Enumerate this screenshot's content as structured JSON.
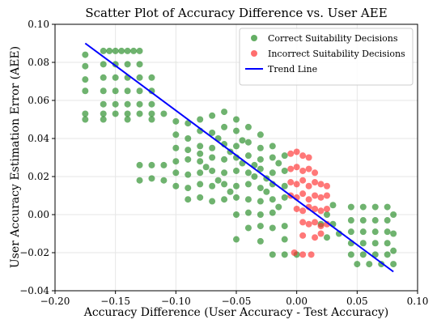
{
  "chart_data": {
    "type": "scatter",
    "title": "Scatter Plot of Accuracy Difference vs. User AEE",
    "xlabel": "Accuracy Difference (User Accuracy - Test Accuracy)",
    "ylabel": "User Accuracy Estimation Error (AEE)",
    "xlim": [
      -0.2,
      0.1
    ],
    "ylim": [
      -0.04,
      0.1
    ],
    "xticks": [
      -0.2,
      -0.15,
      -0.1,
      -0.05,
      0.0,
      0.05,
      0.1
    ],
    "xtick_labels": [
      "−0.20",
      "−0.15",
      "−0.10",
      "−0.05",
      "0.00",
      "0.05",
      "0.10"
    ],
    "yticks": [
      -0.04,
      -0.02,
      0.0,
      0.02,
      0.04,
      0.06,
      0.08,
      0.1
    ],
    "ytick_labels": [
      "−0.04",
      "−0.02",
      "0.00",
      "0.02",
      "0.04",
      "0.06",
      "0.08",
      "0.10"
    ],
    "grid": true,
    "legend_position": "top-right",
    "colors": {
      "correct": "#228b22",
      "incorrect": "#ff3030",
      "trend": "#0000ff"
    },
    "series": [
      {
        "name": "Correct Suitability Decisions",
        "kind": "points",
        "points": [
          [
            -0.175,
            0.084
          ],
          [
            -0.175,
            0.078
          ],
          [
            -0.175,
            0.071
          ],
          [
            -0.175,
            0.065
          ],
          [
            -0.175,
            0.053
          ],
          [
            -0.175,
            0.05
          ],
          [
            -0.16,
            0.086
          ],
          [
            -0.155,
            0.086
          ],
          [
            -0.15,
            0.086
          ],
          [
            -0.145,
            0.086
          ],
          [
            -0.14,
            0.086
          ],
          [
            -0.135,
            0.086
          ],
          [
            -0.13,
            0.086
          ],
          [
            -0.16,
            0.079
          ],
          [
            -0.15,
            0.079
          ],
          [
            -0.14,
            0.079
          ],
          [
            -0.13,
            0.079
          ],
          [
            -0.16,
            0.072
          ],
          [
            -0.15,
            0.072
          ],
          [
            -0.14,
            0.072
          ],
          [
            -0.13,
            0.072
          ],
          [
            -0.12,
            0.072
          ],
          [
            -0.16,
            0.065
          ],
          [
            -0.15,
            0.065
          ],
          [
            -0.14,
            0.065
          ],
          [
            -0.13,
            0.065
          ],
          [
            -0.12,
            0.065
          ],
          [
            -0.16,
            0.058
          ],
          [
            -0.15,
            0.058
          ],
          [
            -0.14,
            0.058
          ],
          [
            -0.13,
            0.058
          ],
          [
            -0.12,
            0.058
          ],
          [
            -0.16,
            0.053
          ],
          [
            -0.15,
            0.053
          ],
          [
            -0.14,
            0.053
          ],
          [
            -0.13,
            0.053
          ],
          [
            -0.12,
            0.053
          ],
          [
            -0.11,
            0.053
          ],
          [
            -0.16,
            0.05
          ],
          [
            -0.14,
            0.05
          ],
          [
            -0.12,
            0.05
          ],
          [
            -0.1,
            0.049
          ],
          [
            -0.09,
            0.048
          ],
          [
            -0.08,
            0.05
          ],
          [
            -0.07,
            0.052
          ],
          [
            -0.06,
            0.054
          ],
          [
            -0.05,
            0.05
          ],
          [
            -0.1,
            0.042
          ],
          [
            -0.09,
            0.04
          ],
          [
            -0.08,
            0.044
          ],
          [
            -0.07,
            0.043
          ],
          [
            -0.06,
            0.046
          ],
          [
            -0.05,
            0.044
          ],
          [
            -0.04,
            0.046
          ],
          [
            -0.03,
            0.042
          ],
          [
            -0.1,
            0.035
          ],
          [
            -0.09,
            0.034
          ],
          [
            -0.08,
            0.036
          ],
          [
            -0.07,
            0.035
          ],
          [
            -0.06,
            0.037
          ],
          [
            -0.05,
            0.036
          ],
          [
            -0.04,
            0.038
          ],
          [
            -0.03,
            0.035
          ],
          [
            -0.02,
            0.036
          ],
          [
            -0.1,
            0.028
          ],
          [
            -0.09,
            0.029
          ],
          [
            -0.08,
            0.028
          ],
          [
            -0.07,
            0.03
          ],
          [
            -0.06,
            0.029
          ],
          [
            -0.05,
            0.03
          ],
          [
            -0.04,
            0.031
          ],
          [
            -0.03,
            0.029
          ],
          [
            -0.02,
            0.03
          ],
          [
            -0.01,
            0.031
          ],
          [
            -0.11,
            0.026
          ],
          [
            -0.12,
            0.026
          ],
          [
            -0.13,
            0.026
          ],
          [
            -0.1,
            0.022
          ],
          [
            -0.09,
            0.021
          ],
          [
            -0.08,
            0.022
          ],
          [
            -0.07,
            0.023
          ],
          [
            -0.06,
            0.022
          ],
          [
            -0.05,
            0.023
          ],
          [
            -0.04,
            0.022
          ],
          [
            -0.03,
            0.024
          ],
          [
            -0.02,
            0.022
          ],
          [
            -0.01,
            0.023
          ],
          [
            -0.11,
            0.018
          ],
          [
            -0.12,
            0.019
          ],
          [
            -0.13,
            0.018
          ],
          [
            -0.1,
            0.015
          ],
          [
            -0.09,
            0.014
          ],
          [
            -0.08,
            0.016
          ],
          [
            -0.07,
            0.015
          ],
          [
            -0.06,
            0.016
          ],
          [
            -0.05,
            0.015
          ],
          [
            -0.04,
            0.016
          ],
          [
            -0.03,
            0.014
          ],
          [
            -0.02,
            0.016
          ],
          [
            -0.01,
            0.015
          ],
          [
            -0.09,
            0.008
          ],
          [
            -0.08,
            0.009
          ],
          [
            -0.07,
            0.007
          ],
          [
            -0.06,
            0.008
          ],
          [
            -0.05,
            0.009
          ],
          [
            -0.04,
            0.008
          ],
          [
            -0.03,
            0.007
          ],
          [
            -0.02,
            0.008
          ],
          [
            -0.01,
            0.009
          ],
          [
            -0.05,
            0.0
          ],
          [
            -0.04,
            0.001
          ],
          [
            -0.03,
            0.0
          ],
          [
            -0.02,
            0.001
          ],
          [
            -0.04,
            -0.007
          ],
          [
            -0.03,
            -0.006
          ],
          [
            -0.02,
            -0.007
          ],
          [
            -0.01,
            -0.006
          ],
          [
            -0.05,
            -0.013
          ],
          [
            -0.03,
            -0.014
          ],
          [
            -0.01,
            -0.013
          ],
          [
            -0.02,
            -0.021
          ],
          [
            -0.01,
            -0.021
          ],
          [
            0.0,
            -0.021
          ],
          [
            -0.08,
            0.032
          ],
          [
            -0.075,
            0.025
          ],
          [
            -0.065,
            0.018
          ],
          [
            -0.055,
            0.012
          ],
          [
            -0.045,
            0.027
          ],
          [
            -0.035,
            0.02
          ],
          [
            -0.025,
            0.012
          ],
          [
            -0.015,
            0.004
          ],
          [
            -0.065,
            0.04
          ],
          [
            -0.055,
            0.033
          ],
          [
            -0.045,
            0.039
          ],
          [
            -0.035,
            0.026
          ],
          [
            -0.025,
            0.019
          ],
          [
            -0.015,
            0.027
          ],
          [
            0.045,
            0.004
          ],
          [
            0.055,
            0.004
          ],
          [
            0.065,
            0.004
          ],
          [
            0.075,
            0.004
          ],
          [
            0.045,
            -0.003
          ],
          [
            0.055,
            -0.003
          ],
          [
            0.065,
            -0.003
          ],
          [
            0.075,
            -0.003
          ],
          [
            0.045,
            -0.009
          ],
          [
            0.055,
            -0.009
          ],
          [
            0.065,
            -0.009
          ],
          [
            0.075,
            -0.009
          ],
          [
            0.045,
            -0.015
          ],
          [
            0.055,
            -0.015
          ],
          [
            0.065,
            -0.015
          ],
          [
            0.075,
            -0.015
          ],
          [
            0.045,
            -0.021
          ],
          [
            0.055,
            -0.021
          ],
          [
            0.065,
            -0.021
          ],
          [
            0.075,
            -0.021
          ],
          [
            0.05,
            -0.026
          ],
          [
            0.06,
            -0.026
          ],
          [
            0.07,
            -0.026
          ],
          [
            0.08,
            -0.026
          ],
          [
            0.08,
            0.0
          ],
          [
            0.08,
            -0.01
          ],
          [
            0.08,
            -0.019
          ],
          [
            0.025,
            0.0
          ],
          [
            0.03,
            -0.005
          ],
          [
            0.035,
            -0.01
          ],
          [
            0.02,
            -0.005
          ],
          [
            0.03,
            0.005
          ],
          [
            0.025,
            -0.012
          ]
        ]
      },
      {
        "name": "Incorrect Suitability Decisions",
        "kind": "points",
        "points": [
          [
            -0.005,
            0.032
          ],
          [
            0.0,
            0.033
          ],
          [
            0.005,
            0.031
          ],
          [
            0.01,
            0.03
          ],
          [
            -0.005,
            0.024
          ],
          [
            0.0,
            0.025
          ],
          [
            0.005,
            0.023
          ],
          [
            0.01,
            0.024
          ],
          [
            0.015,
            0.022
          ],
          [
            -0.005,
            0.017
          ],
          [
            0.0,
            0.016
          ],
          [
            0.005,
            0.018
          ],
          [
            0.01,
            0.015
          ],
          [
            0.015,
            0.017
          ],
          [
            0.02,
            0.016
          ],
          [
            0.025,
            0.015
          ],
          [
            -0.005,
            0.01
          ],
          [
            0.0,
            0.009
          ],
          [
            0.005,
            0.011
          ],
          [
            0.01,
            0.008
          ],
          [
            0.015,
            0.01
          ],
          [
            0.02,
            0.009
          ],
          [
            0.025,
            0.01
          ],
          [
            0.0,
            0.003
          ],
          [
            0.005,
            0.002
          ],
          [
            0.01,
            0.004
          ],
          [
            0.015,
            0.003
          ],
          [
            0.02,
            0.002
          ],
          [
            0.025,
            0.003
          ],
          [
            0.005,
            -0.004
          ],
          [
            0.01,
            -0.005
          ],
          [
            0.015,
            -0.004
          ],
          [
            0.02,
            -0.006
          ],
          [
            0.025,
            -0.005
          ],
          [
            0.005,
            -0.011
          ],
          [
            0.015,
            -0.012
          ],
          [
            0.02,
            -0.01
          ],
          [
            -0.002,
            -0.02
          ],
          [
            0.005,
            -0.021
          ],
          [
            0.012,
            -0.021
          ]
        ]
      },
      {
        "name": "Trend Line",
        "kind": "line",
        "points": [
          [
            -0.175,
            0.09
          ],
          [
            0.08,
            -0.03
          ]
        ]
      }
    ]
  }
}
